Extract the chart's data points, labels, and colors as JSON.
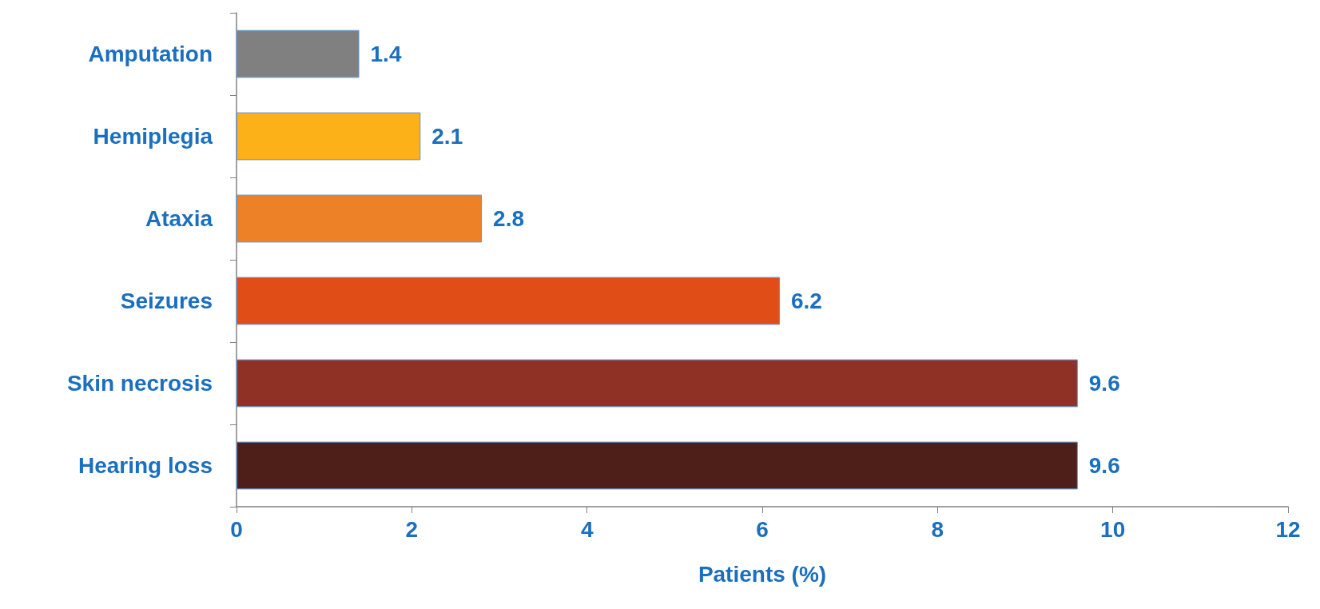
{
  "chart_data": {
    "type": "bar",
    "orientation": "horizontal",
    "categories": [
      "Amputation",
      "Hemiplegia",
      "Ataxia",
      "Seizures",
      "Skin necrosis",
      "Hearing loss"
    ],
    "values": [
      1.4,
      2.1,
      2.8,
      6.2,
      9.6,
      9.6
    ],
    "colors": [
      "#808080",
      "#fdb118",
      "#ec8128",
      "#e04d16",
      "#8f3125",
      "#4e1e18"
    ],
    "xlabel": "Patients (%)",
    "xlim": [
      0,
      12
    ],
    "xticks": [
      0,
      2,
      4,
      6,
      8,
      10,
      12
    ],
    "data_labels": true,
    "grid": false
  }
}
